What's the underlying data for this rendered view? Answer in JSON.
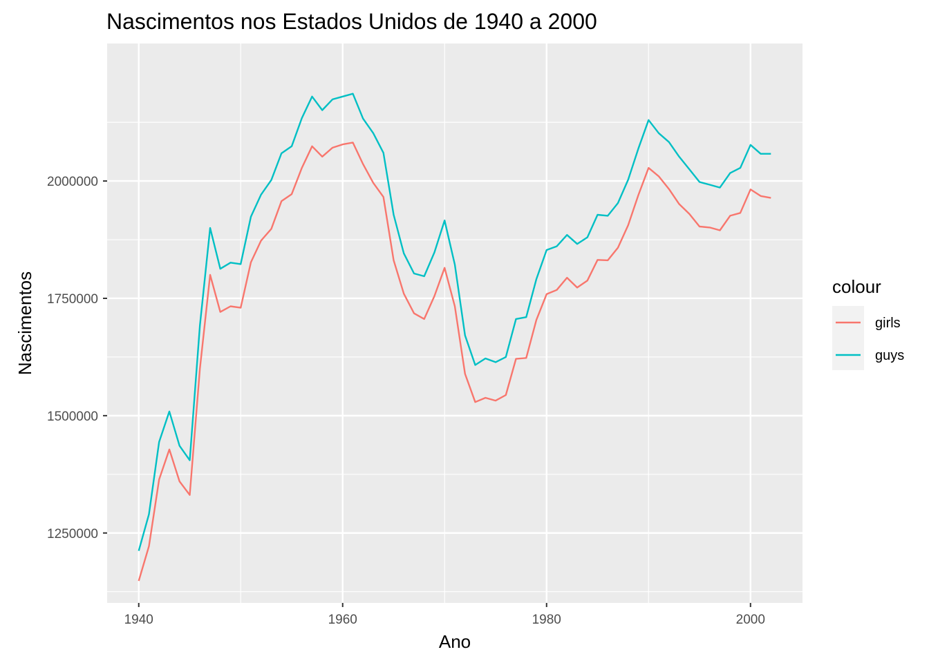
{
  "chart_data": {
    "type": "line",
    "title": "Nascimentos nos Estados Unidos de 1940 a 2000",
    "xlabel": "Ano",
    "ylabel": "Nascimentos",
    "xlim": [
      1936.9,
      2005.1
    ],
    "ylim": [
      1101000,
      2293000
    ],
    "x_ticks": [
      1940,
      1960,
      1980,
      2000
    ],
    "x_minor_ticks": [
      1950,
      1970,
      1990
    ],
    "y_ticks": [
      1250000,
      1500000,
      1750000,
      2000000
    ],
    "y_minor_ticks": [
      1125000,
      1375000,
      1625000,
      1875000,
      2125000
    ],
    "grid": true,
    "legend": {
      "title": "colour",
      "position": "right"
    },
    "x": [
      1940,
      1941,
      1942,
      1943,
      1944,
      1945,
      1946,
      1947,
      1948,
      1949,
      1950,
      1951,
      1952,
      1953,
      1954,
      1955,
      1956,
      1957,
      1958,
      1959,
      1960,
      1961,
      1962,
      1963,
      1964,
      1965,
      1966,
      1967,
      1968,
      1969,
      1970,
      1971,
      1972,
      1973,
      1974,
      1975,
      1976,
      1977,
      1978,
      1979,
      1980,
      1981,
      1982,
      1983,
      1984,
      1985,
      1986,
      1987,
      1988,
      1989,
      1990,
      1991,
      1992,
      1993,
      1994,
      1995,
      1996,
      1997,
      1998,
      1999,
      2000,
      2001,
      2002
    ],
    "series": [
      {
        "name": "girls",
        "color": "#F8766D",
        "values": [
          1148000,
          1222000,
          1364000,
          1428000,
          1360000,
          1331000,
          1600000,
          1800000,
          1721000,
          1733000,
          1730000,
          1827000,
          1873000,
          1898000,
          1957000,
          1972000,
          2028000,
          2074000,
          2052000,
          2071000,
          2078000,
          2082000,
          2036000,
          1996000,
          1966000,
          1831000,
          1760000,
          1718000,
          1706000,
          1755000,
          1815000,
          1733000,
          1589000,
          1529000,
          1538000,
          1532000,
          1544000,
          1621000,
          1623000,
          1704000,
          1759000,
          1768000,
          1794000,
          1773000,
          1788000,
          1832000,
          1831000,
          1858000,
          1906000,
          1970000,
          2028000,
          2010000,
          1983000,
          1951000,
          1930000,
          1903000,
          1901000,
          1895000,
          1926000,
          1932000,
          1982000,
          1968000,
          1964000
        ]
      },
      {
        "name": "guys",
        "color": "#00BFC4",
        "values": [
          1212000,
          1290000,
          1444000,
          1509000,
          1436000,
          1405000,
          1692000,
          1900000,
          1813000,
          1826000,
          1823000,
          1924000,
          1971000,
          2002000,
          2059000,
          2074000,
          2134000,
          2180000,
          2151000,
          2174000,
          2180000,
          2186000,
          2133000,
          2102000,
          2060000,
          1928000,
          1846000,
          1803000,
          1797000,
          1848000,
          1916000,
          1822000,
          1671000,
          1608000,
          1622000,
          1614000,
          1625000,
          1706000,
          1710000,
          1791000,
          1853000,
          1861000,
          1885000,
          1866000,
          1880000,
          1928000,
          1926000,
          1953000,
          2003000,
          2069000,
          2130000,
          2102000,
          2083000,
          2052000,
          2025000,
          1998000,
          1992000,
          1986000,
          2017000,
          2028000,
          2077000,
          2058000,
          2058000
        ]
      }
    ]
  }
}
